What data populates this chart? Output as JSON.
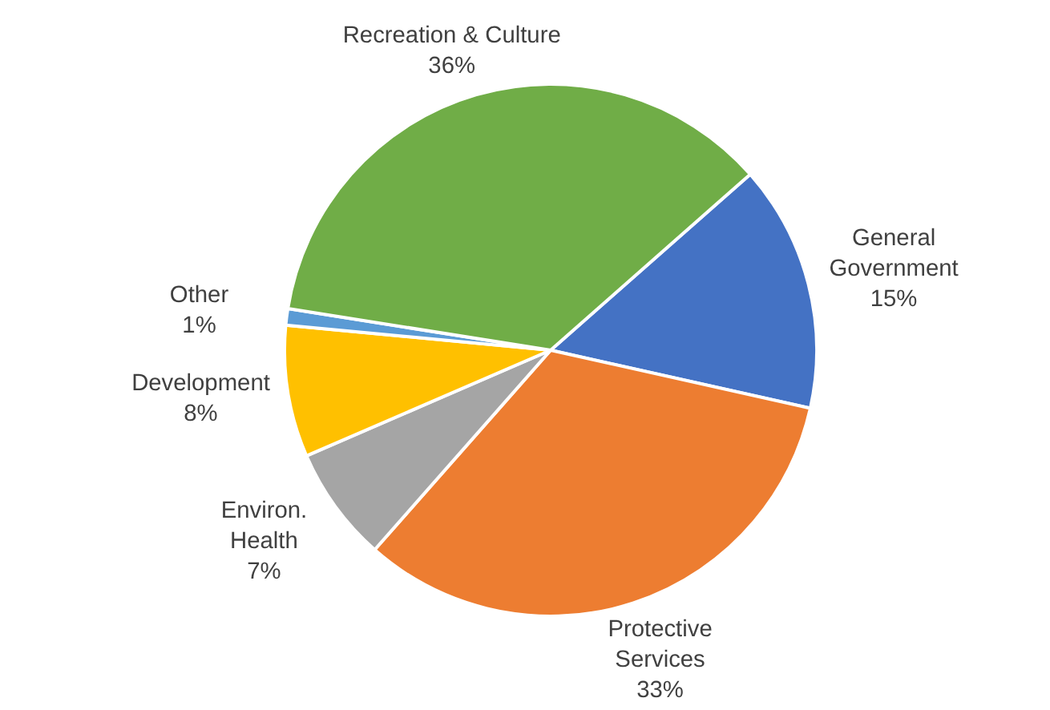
{
  "chart_data": {
    "type": "pie",
    "categories": [
      "General Government",
      "Protective Services",
      "Environ. Health",
      "Development",
      "Other",
      "Recreation & Culture"
    ],
    "values": [
      15,
      33,
      7,
      8,
      1,
      36
    ],
    "value_labels": [
      "15%",
      "33%",
      "7%",
      "8%",
      "1%",
      "36%"
    ],
    "data_labels": true,
    "colors": [
      "#4472c4",
      "#ed7d31",
      "#a5a5a5",
      "#ffc000",
      "#5b9bd5",
      "#70ad47"
    ]
  }
}
